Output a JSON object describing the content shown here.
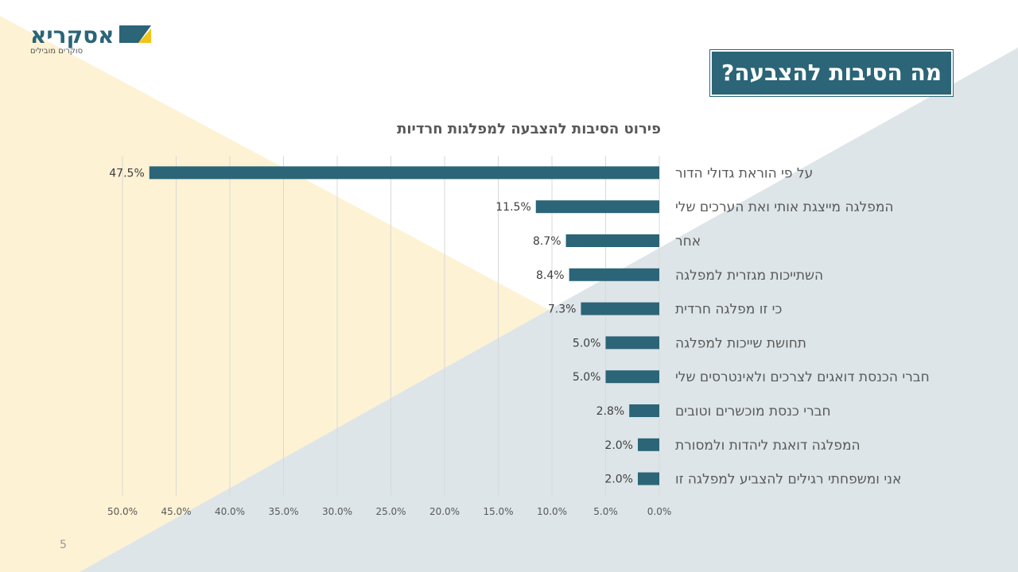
{
  "logo": {
    "name": "אסקריא",
    "tagline": "סוקרים מובילים"
  },
  "slide": {
    "title": "מה הסיבות להצבעה?",
    "page_number": "5"
  },
  "colors": {
    "bar": "#2b6577",
    "accent": "#2b6577",
    "yellow_bg": "#fdf2d3",
    "blue_bg": "#dde5e8"
  },
  "chart_data": {
    "type": "bar",
    "orientation": "horizontal",
    "title": "פירוט הסיבות להצבעה למפלגות חרדיות",
    "categories": [
      "על פי הוראת גדולי הדור",
      "המפלגה מייצגת אותי ואת הערכים שלי",
      "אחר",
      "השתייכות מגזרית למפלגה",
      "כי זו מפלגה חרדית",
      "תחושת שייכות למפלגה",
      "חברי הכנסת דואגים לצרכים ולאינטרסים שלי",
      "חברי כנסת מוכשרים וטובים",
      "המפלגה דואגת ליהדות ולמסורת",
      "אני ומשפחתי רגילים להצביע למפלגה זו"
    ],
    "values": [
      47.5,
      11.5,
      8.7,
      8.4,
      7.3,
      5.0,
      5.0,
      2.8,
      2.0,
      2.0
    ],
    "value_labels": [
      "47.5%",
      "11.5%",
      "8.7%",
      "8.4%",
      "7.3%",
      "5.0%",
      "5.0%",
      "2.8%",
      "2.0%",
      "2.0%"
    ],
    "xlim": [
      0,
      50
    ],
    "x_reversed": true,
    "ticks": [
      0,
      5,
      10,
      15,
      20,
      25,
      30,
      35,
      40,
      45,
      50
    ],
    "tick_labels": [
      "0.0%",
      "5.0%",
      "10.0%",
      "15.0%",
      "20.0%",
      "25.0%",
      "30.0%",
      "35.0%",
      "40.0%",
      "45.0%",
      "50.0%"
    ],
    "grid": true
  }
}
